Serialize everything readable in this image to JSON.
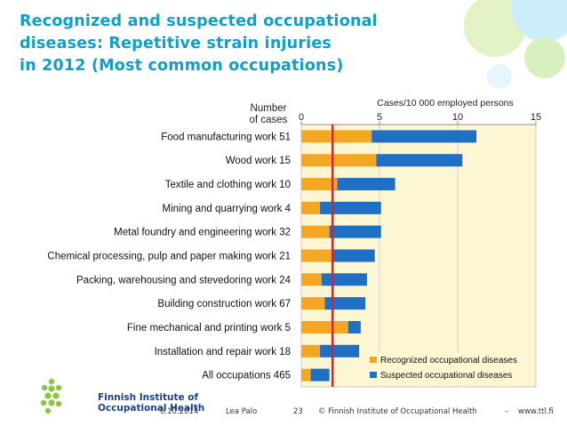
{
  "slide": {
    "title_lines": [
      "Recognized and suspected occupational",
      "diseases: Repetitive strain injuries",
      "in 2012 (Most common occupations)"
    ]
  },
  "chart_data": {
    "type": "bar",
    "orientation": "horizontal",
    "stacked": true,
    "title": "",
    "xlabel": "Cases/10 000 employed persons",
    "ylabel": "Number of cases",
    "ylabel_lines": [
      "Number",
      "of cases"
    ],
    "xlim": [
      0,
      15
    ],
    "xticks": [
      0,
      5,
      10,
      15
    ],
    "grid": true,
    "reference_line": {
      "x": 2.0,
      "color": "#e31e24",
      "label": ""
    },
    "categories": [
      "Food manufacturing work 51",
      "Wood work 15",
      "Textile and clothing work 10",
      "Mining and quarrying work 4",
      "Metal foundry and engineering work 32",
      "Chemical processing, pulp and paper making work 21",
      "Packing, warehousing and stevedoring work 24",
      "Building construction work 67",
      "Fine mechanical and printing work 5",
      "Installation and repair work 18",
      "All occupations 465"
    ],
    "series": [
      {
        "name": "Recognized occupational diseases",
        "color": "#f5a623",
        "values": [
          4.5,
          4.8,
          2.3,
          1.2,
          1.8,
          2.0,
          1.3,
          1.5,
          3.0,
          1.2,
          0.6
        ]
      },
      {
        "name": "Suspected occupational diseases",
        "color": "#1f6fc5",
        "values": [
          6.7,
          5.5,
          3.7,
          3.9,
          3.3,
          2.7,
          2.9,
          2.6,
          0.8,
          2.5,
          1.2
        ]
      }
    ],
    "legend_position": "bottom-right"
  },
  "logo": {
    "line1": "Finnish Institute of",
    "line2": "Occupational Health"
  },
  "footer": {
    "date": "6.10.2014",
    "author": "Lea Palo",
    "page": "23",
    "copyright": "© Finnish Institute of Occupational Health",
    "separator": "–",
    "url": "www.ttl.fi"
  }
}
